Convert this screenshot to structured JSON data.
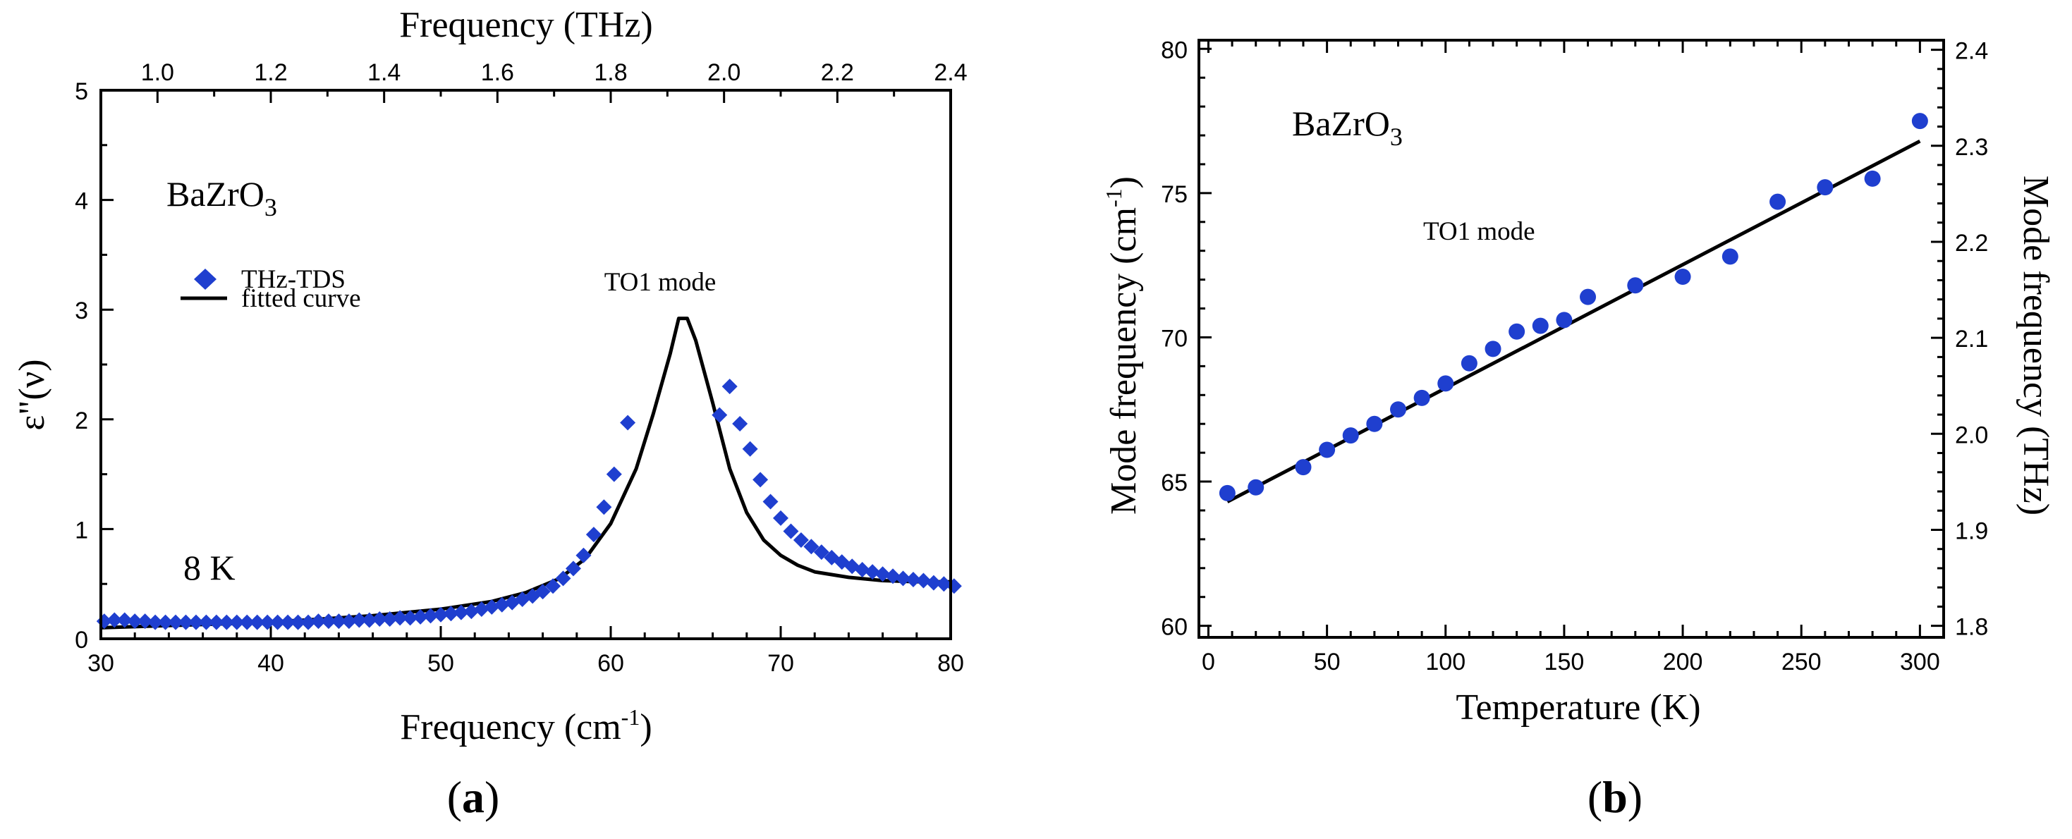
{
  "chart_data": [
    {
      "panel": "(a)",
      "type": "scatter",
      "xlabel": "Frequency (cm-1)",
      "xlabel_main": "Frequency (cm",
      "xlabel_sup": "-1",
      "xlabel_close": ")",
      "x2label": "Frequency (THz)",
      "ylabel": "ε\"(ν)",
      "xlim": [
        30,
        80
      ],
      "x2lim": [
        0.9,
        2.4
      ],
      "ylim": [
        0,
        5
      ],
      "xticks": [
        "30",
        "40",
        "50",
        "60",
        "70",
        "80"
      ],
      "x2ticks": [
        "1.0",
        "1.2",
        "1.4",
        "1.6",
        "1.8",
        "2.0",
        "2.2",
        "2.4"
      ],
      "yticks": [
        "0",
        "1",
        "2",
        "3",
        "4",
        "5"
      ],
      "annotations": {
        "material": "BaZrO3",
        "material_base": "BaZrO",
        "material_sub": "3",
        "mode": "TO1 mode",
        "temperature": "8 K"
      },
      "legend_placement": "upper-left",
      "series": [
        {
          "name": "THz-TDS",
          "marker": "diamond",
          "color": "#1f3fcf",
          "x": [
            30.2,
            30.8,
            31.4,
            32.0,
            32.6,
            33.2,
            33.8,
            34.4,
            35.0,
            35.6,
            36.2,
            36.8,
            37.4,
            38.0,
            38.6,
            39.2,
            39.8,
            40.4,
            41.0,
            41.6,
            42.2,
            42.8,
            43.4,
            44.0,
            44.6,
            45.2,
            45.8,
            46.4,
            47.0,
            47.6,
            48.2,
            48.8,
            49.4,
            50.0,
            50.6,
            51.2,
            51.8,
            52.4,
            53.0,
            53.6,
            54.2,
            54.8,
            55.4,
            56.0,
            56.6,
            57.2,
            57.8,
            58.4,
            59.0,
            59.6,
            60.2,
            61.0,
            66.4,
            67.0,
            67.6,
            68.2,
            68.8,
            69.4,
            70.0,
            70.6,
            71.2,
            71.8,
            72.4,
            73.0,
            73.6,
            74.2,
            74.8,
            75.4,
            76.0,
            76.6,
            77.2,
            77.8,
            78.4,
            79.0,
            79.6,
            80.2
          ],
          "y": [
            0.16,
            0.17,
            0.17,
            0.16,
            0.16,
            0.15,
            0.15,
            0.15,
            0.15,
            0.15,
            0.15,
            0.15,
            0.15,
            0.15,
            0.15,
            0.15,
            0.15,
            0.15,
            0.15,
            0.15,
            0.15,
            0.16,
            0.16,
            0.16,
            0.16,
            0.17,
            0.17,
            0.18,
            0.18,
            0.19,
            0.19,
            0.2,
            0.21,
            0.22,
            0.23,
            0.24,
            0.25,
            0.27,
            0.29,
            0.31,
            0.33,
            0.36,
            0.39,
            0.43,
            0.48,
            0.55,
            0.64,
            0.76,
            0.95,
            1.2,
            1.5,
            1.97,
            2.04,
            2.3,
            1.96,
            1.73,
            1.45,
            1.25,
            1.1,
            0.98,
            0.9,
            0.84,
            0.79,
            0.74,
            0.7,
            0.66,
            0.63,
            0.61,
            0.59,
            0.57,
            0.55,
            0.54,
            0.53,
            0.51,
            0.5,
            0.48
          ]
        },
        {
          "name": "fitted curve",
          "marker": "line",
          "color": "#000000",
          "x": [
            30,
            34,
            38,
            42,
            46,
            50,
            53,
            55,
            57,
            58.5,
            60,
            61.5,
            62.5,
            63.5,
            64.0,
            64.5,
            65.0,
            66.0,
            67.0,
            68.0,
            69.0,
            70.0,
            71.0,
            72.0,
            74.0,
            76.0,
            78.0,
            80.0
          ],
          "y": [
            0.1,
            0.12,
            0.14,
            0.17,
            0.21,
            0.27,
            0.34,
            0.42,
            0.55,
            0.73,
            1.05,
            1.55,
            2.05,
            2.6,
            2.92,
            2.92,
            2.72,
            2.15,
            1.55,
            1.15,
            0.9,
            0.76,
            0.67,
            0.61,
            0.56,
            0.53,
            0.52,
            0.52
          ]
        }
      ]
    },
    {
      "panel": "(b)",
      "type": "scatter",
      "xlabel": "Temperature (K)",
      "ylabel": "Mode frequency (cm-1)",
      "ylabel_main": "Mode frequency (cm",
      "ylabel_sup": "-1",
      "ylabel_close": ")",
      "y2label": "Mode frequency (THz)",
      "xlim": [
        -4,
        310
      ],
      "ylim": [
        59.6,
        80.3
      ],
      "y2lim": [
        1.788,
        2.41
      ],
      "xticks": [
        "0",
        "50",
        "100",
        "150",
        "200",
        "250",
        "300"
      ],
      "yticks": [
        "60",
        "65",
        "70",
        "75",
        "80"
      ],
      "y2ticks": [
        "1.8",
        "1.9",
        "2.0",
        "2.1",
        "2.2",
        "2.3",
        "2.4"
      ],
      "annotations": {
        "material": "BaZrO3",
        "material_base": "BaZrO",
        "material_sub": "3",
        "mode": "TO1 mode"
      },
      "series": [
        {
          "marker": "circle",
          "color": "#1f3fcf",
          "x": [
            8,
            20,
            40,
            50,
            60,
            70,
            80,
            90,
            100,
            110,
            120,
            130,
            140,
            150,
            160,
            180,
            200,
            220,
            240,
            260,
            280,
            300
          ],
          "y": [
            64.6,
            64.8,
            65.5,
            66.1,
            66.6,
            67.0,
            67.5,
            67.9,
            68.4,
            69.1,
            69.6,
            70.2,
            70.4,
            70.6,
            71.4,
            71.8,
            72.1,
            72.8,
            74.7,
            75.2,
            75.5,
            77.5
          ]
        },
        {
          "marker": "line",
          "color": "#000000",
          "x": [
            8,
            300
          ],
          "y": [
            64.3,
            76.8
          ]
        }
      ]
    }
  ],
  "panel_labels": {
    "a": "a",
    "b": "b"
  }
}
